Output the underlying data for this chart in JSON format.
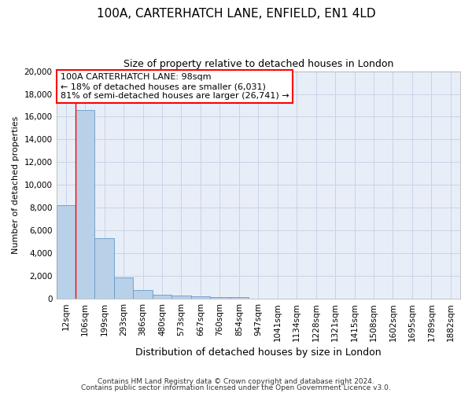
{
  "title": "100A, CARTERHATCH LANE, ENFIELD, EN1 4LD",
  "subtitle": "Size of property relative to detached houses in London",
  "xlabel": "Distribution of detached houses by size in London",
  "ylabel": "Number of detached properties",
  "footer_line1": "Contains HM Land Registry data © Crown copyright and database right 2024.",
  "footer_line2": "Contains public sector information licensed under the Open Government Licence v3.0.",
  "categories": [
    "12sqm",
    "106sqm",
    "199sqm",
    "293sqm",
    "386sqm",
    "480sqm",
    "573sqm",
    "667sqm",
    "760sqm",
    "854sqm",
    "947sqm",
    "1041sqm",
    "1134sqm",
    "1228sqm",
    "1321sqm",
    "1415sqm",
    "1508sqm",
    "1602sqm",
    "1695sqm",
    "1789sqm",
    "1882sqm"
  ],
  "values": [
    8200,
    16600,
    5300,
    1850,
    750,
    340,
    260,
    220,
    170,
    120,
    0,
    0,
    0,
    0,
    0,
    0,
    0,
    0,
    0,
    0,
    0
  ],
  "bar_color": "#b8d0e8",
  "bar_edge_color": "#6699cc",
  "grid_color": "#c8d4e8",
  "plot_bg_color": "#e8eef8",
  "fig_bg_color": "#ffffff",
  "annotation_text": "100A CARTERHATCH LANE: 98sqm\n← 18% of detached houses are smaller (6,031)\n81% of semi-detached houses are larger (26,741) →",
  "annotation_box_color": "white",
  "annotation_box_edge": "red",
  "red_line_x": 0.5,
  "ylim": [
    0,
    20000
  ],
  "yticks": [
    0,
    2000,
    4000,
    6000,
    8000,
    10000,
    12000,
    14000,
    16000,
    18000,
    20000
  ],
  "title_fontsize": 11,
  "subtitle_fontsize": 9,
  "ylabel_fontsize": 8,
  "xlabel_fontsize": 9,
  "tick_fontsize": 7.5,
  "annot_fontsize": 8,
  "footer_fontsize": 6.5
}
